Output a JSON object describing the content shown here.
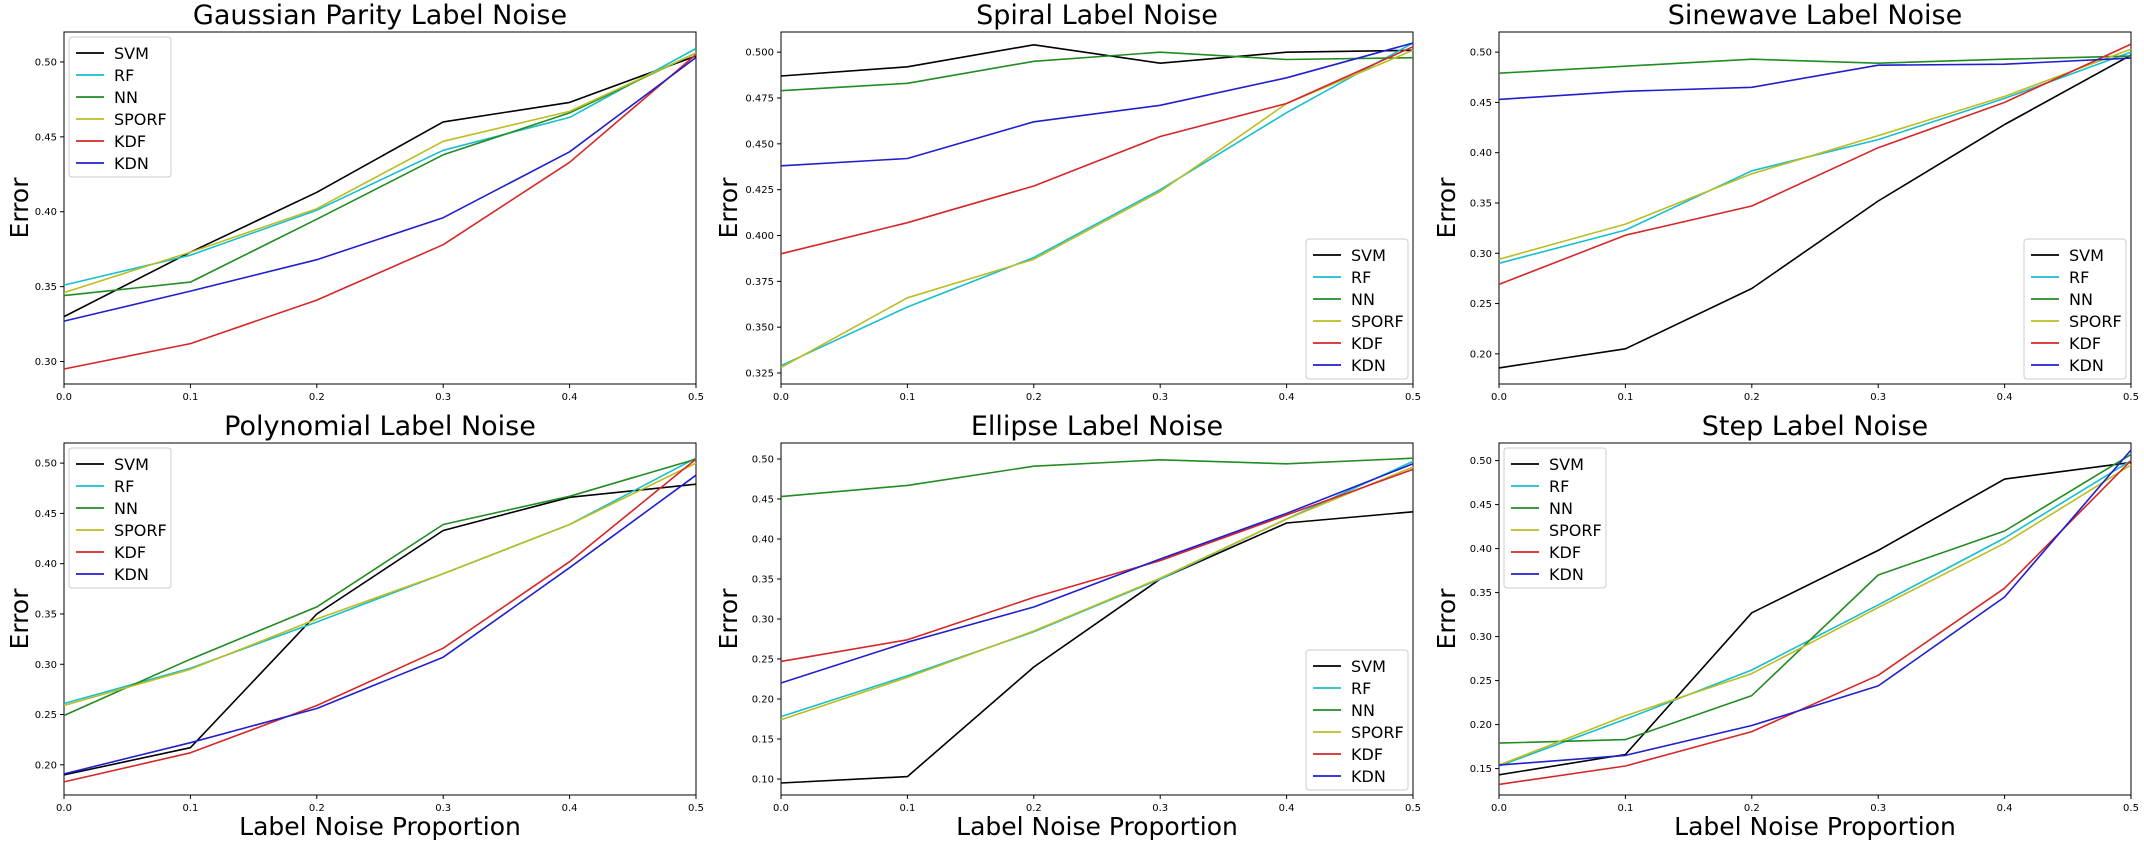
{
  "figure": {
    "colors": {
      "SVM": "#000000",
      "RF": "#17becf",
      "NN": "#228b22",
      "SPORF": "#bcbd22",
      "KDF": "#d62728",
      "KDN": "#1f1fcf"
    }
  },
  "chart_data": [
    {
      "type": "line",
      "title": "Gaussian Parity Label Noise",
      "xlabel": "",
      "ylabel": "Error",
      "x": [
        0.0,
        0.1,
        0.2,
        0.3,
        0.4,
        0.5
      ],
      "xticks": [
        "0.0",
        "0.1",
        "0.2",
        "0.3",
        "0.4",
        "0.5"
      ],
      "xlim": [
        0.0,
        0.5
      ],
      "ylim": [
        0.285,
        0.52
      ],
      "yticks": [
        "0.30",
        "0.35",
        "0.40",
        "0.45",
        "0.50"
      ],
      "ytick_values": [
        0.3,
        0.35,
        0.4,
        0.45,
        0.5
      ],
      "grid": false,
      "legend": "upper left",
      "series": [
        {
          "name": "SVM",
          "values": [
            0.33,
            0.373,
            0.413,
            0.46,
            0.473,
            0.504
          ]
        },
        {
          "name": "RF",
          "values": [
            0.351,
            0.371,
            0.401,
            0.441,
            0.463,
            0.509
          ]
        },
        {
          "name": "NN",
          "values": [
            0.344,
            0.353,
            0.395,
            0.438,
            0.466,
            0.506
          ]
        },
        {
          "name": "SPORF",
          "values": [
            0.346,
            0.373,
            0.402,
            0.447,
            0.467,
            0.506
          ]
        },
        {
          "name": "KDF",
          "values": [
            0.295,
            0.312,
            0.341,
            0.378,
            0.433,
            0.505
          ]
        },
        {
          "name": "KDN",
          "values": [
            0.327,
            0.347,
            0.368,
            0.396,
            0.44,
            0.503
          ]
        }
      ]
    },
    {
      "type": "line",
      "title": "Spiral Label Noise",
      "xlabel": "",
      "ylabel": "Error",
      "x": [
        0.0,
        0.1,
        0.2,
        0.3,
        0.4,
        0.5
      ],
      "xticks": [
        "0.0",
        "0.1",
        "0.2",
        "0.3",
        "0.4",
        "0.5"
      ],
      "xlim": [
        0.0,
        0.5
      ],
      "ylim": [
        0.319,
        0.511
      ],
      "yticks": [
        "0.325",
        "0.350",
        "0.375",
        "0.400",
        "0.425",
        "0.450",
        "0.475",
        "0.500"
      ],
      "ytick_values": [
        0.325,
        0.35,
        0.375,
        0.4,
        0.425,
        0.45,
        0.475,
        0.5
      ],
      "grid": false,
      "legend": "lower right",
      "series": [
        {
          "name": "SVM",
          "values": [
            0.487,
            0.492,
            0.504,
            0.494,
            0.5,
            0.501
          ]
        },
        {
          "name": "RF",
          "values": [
            0.329,
            0.361,
            0.388,
            0.425,
            0.467,
            0.505
          ]
        },
        {
          "name": "NN",
          "values": [
            0.479,
            0.483,
            0.495,
            0.5,
            0.496,
            0.497
          ]
        },
        {
          "name": "SPORF",
          "values": [
            0.328,
            0.366,
            0.387,
            0.424,
            0.472,
            0.501
          ]
        },
        {
          "name": "KDF",
          "values": [
            0.39,
            0.407,
            0.427,
            0.454,
            0.472,
            0.503
          ]
        },
        {
          "name": "KDN",
          "values": [
            0.438,
            0.442,
            0.462,
            0.471,
            0.486,
            0.505
          ]
        }
      ]
    },
    {
      "type": "line",
      "title": "Sinewave Label Noise",
      "xlabel": "",
      "ylabel": "Error",
      "x": [
        0.0,
        0.1,
        0.2,
        0.3,
        0.4,
        0.5
      ],
      "xticks": [
        "0.0",
        "0.1",
        "0.2",
        "0.3",
        "0.4",
        "0.5"
      ],
      "xlim": [
        0.0,
        0.5
      ],
      "ylim": [
        0.17,
        0.52
      ],
      "yticks": [
        "0.20",
        "0.25",
        "0.30",
        "0.35",
        "0.40",
        "0.45",
        "0.50"
      ],
      "ytick_values": [
        0.2,
        0.25,
        0.3,
        0.35,
        0.4,
        0.45,
        0.5
      ],
      "grid": false,
      "legend": "lower right",
      "series": [
        {
          "name": "SVM",
          "values": [
            0.186,
            0.205,
            0.265,
            0.352,
            0.428,
            0.497
          ]
        },
        {
          "name": "RF",
          "values": [
            0.29,
            0.323,
            0.382,
            0.413,
            0.454,
            0.5
          ]
        },
        {
          "name": "NN",
          "values": [
            0.479,
            0.486,
            0.493,
            0.489,
            0.493,
            0.496
          ]
        },
        {
          "name": "SPORF",
          "values": [
            0.294,
            0.329,
            0.379,
            0.417,
            0.456,
            0.503
          ]
        },
        {
          "name": "KDF",
          "values": [
            0.269,
            0.318,
            0.347,
            0.405,
            0.45,
            0.508
          ]
        },
        {
          "name": "KDN",
          "values": [
            0.453,
            0.461,
            0.465,
            0.487,
            0.488,
            0.494
          ]
        }
      ]
    },
    {
      "type": "line",
      "title": "Polynomial Label Noise",
      "xlabel": "Label Noise Proportion",
      "ylabel": "Error",
      "x": [
        0.0,
        0.1,
        0.2,
        0.3,
        0.4,
        0.5
      ],
      "xticks": [
        "0.0",
        "0.1",
        "0.2",
        "0.3",
        "0.4",
        "0.5"
      ],
      "xlim": [
        0.0,
        0.5
      ],
      "ylim": [
        0.17,
        0.52
      ],
      "yticks": [
        "0.20",
        "0.25",
        "0.30",
        "0.35",
        "0.40",
        "0.45",
        "0.50"
      ],
      "ytick_values": [
        0.2,
        0.25,
        0.3,
        0.35,
        0.4,
        0.45,
        0.5
      ],
      "grid": false,
      "legend": "upper left",
      "series": [
        {
          "name": "SVM",
          "values": [
            0.19,
            0.217,
            0.35,
            0.433,
            0.466,
            0.479
          ]
        },
        {
          "name": "RF",
          "values": [
            0.261,
            0.296,
            0.342,
            0.39,
            0.439,
            0.505
          ]
        },
        {
          "name": "NN",
          "values": [
            0.249,
            0.305,
            0.357,
            0.439,
            0.467,
            0.504
          ]
        },
        {
          "name": "SPORF",
          "values": [
            0.259,
            0.295,
            0.345,
            0.39,
            0.439,
            0.5
          ]
        },
        {
          "name": "KDF",
          "values": [
            0.183,
            0.212,
            0.259,
            0.316,
            0.402,
            0.504
          ]
        },
        {
          "name": "KDN",
          "values": [
            0.191,
            0.222,
            0.256,
            0.307,
            0.396,
            0.488
          ]
        }
      ]
    },
    {
      "type": "line",
      "title": "Ellipse Label Noise",
      "xlabel": "Label Noise Proportion",
      "ylabel": "Error",
      "x": [
        0.0,
        0.1,
        0.2,
        0.3,
        0.4,
        0.5
      ],
      "xticks": [
        "0.0",
        "0.1",
        "0.2",
        "0.3",
        "0.4",
        "0.5"
      ],
      "xlim": [
        0.0,
        0.5
      ],
      "ylim": [
        0.08,
        0.52
      ],
      "yticks": [
        "0.10",
        "0.15",
        "0.20",
        "0.25",
        "0.30",
        "0.35",
        "0.40",
        "0.45",
        "0.50"
      ],
      "ytick_values": [
        0.1,
        0.15,
        0.2,
        0.25,
        0.3,
        0.35,
        0.4,
        0.45,
        0.5
      ],
      "grid": false,
      "legend": "lower right",
      "series": [
        {
          "name": "SVM",
          "values": [
            0.095,
            0.103,
            0.24,
            0.35,
            0.42,
            0.434
          ]
        },
        {
          "name": "RF",
          "values": [
            0.178,
            0.229,
            0.284,
            0.35,
            0.425,
            0.497
          ]
        },
        {
          "name": "NN",
          "values": [
            0.453,
            0.467,
            0.491,
            0.499,
            0.494,
            0.501
          ]
        },
        {
          "name": "SPORF",
          "values": [
            0.174,
            0.227,
            0.285,
            0.351,
            0.425,
            0.49
          ]
        },
        {
          "name": "KDF",
          "values": [
            0.247,
            0.274,
            0.327,
            0.373,
            0.43,
            0.487
          ]
        },
        {
          "name": "KDN",
          "values": [
            0.22,
            0.271,
            0.315,
            0.375,
            0.432,
            0.494
          ]
        }
      ]
    },
    {
      "type": "line",
      "title": "Step Label Noise",
      "xlabel": "Label Noise Proportion",
      "ylabel": "Error",
      "x": [
        0.0,
        0.1,
        0.2,
        0.3,
        0.4,
        0.5
      ],
      "xticks": [
        "0.0",
        "0.1",
        "0.2",
        "0.3",
        "0.4",
        "0.5"
      ],
      "xlim": [
        0.0,
        0.5
      ],
      "ylim": [
        0.12,
        0.52
      ],
      "yticks": [
        "0.15",
        "0.20",
        "0.25",
        "0.30",
        "0.35",
        "0.40",
        "0.45",
        "0.50"
      ],
      "ytick_values": [
        0.15,
        0.2,
        0.25,
        0.3,
        0.35,
        0.4,
        0.45,
        0.5
      ],
      "grid": false,
      "legend": "upper left",
      "series": [
        {
          "name": "SVM",
          "values": [
            0.143,
            0.166,
            0.327,
            0.398,
            0.479,
            0.498
          ]
        },
        {
          "name": "RF",
          "values": [
            0.153,
            0.206,
            0.262,
            0.336,
            0.412,
            0.5
          ]
        },
        {
          "name": "NN",
          "values": [
            0.179,
            0.183,
            0.233,
            0.37,
            0.42,
            0.507
          ]
        },
        {
          "name": "SPORF",
          "values": [
            0.154,
            0.21,
            0.258,
            0.333,
            0.406,
            0.495
          ]
        },
        {
          "name": "KDF",
          "values": [
            0.132,
            0.153,
            0.192,
            0.256,
            0.355,
            0.5
          ]
        },
        {
          "name": "KDN",
          "values": [
            0.154,
            0.165,
            0.199,
            0.244,
            0.345,
            0.512
          ]
        }
      ]
    }
  ]
}
